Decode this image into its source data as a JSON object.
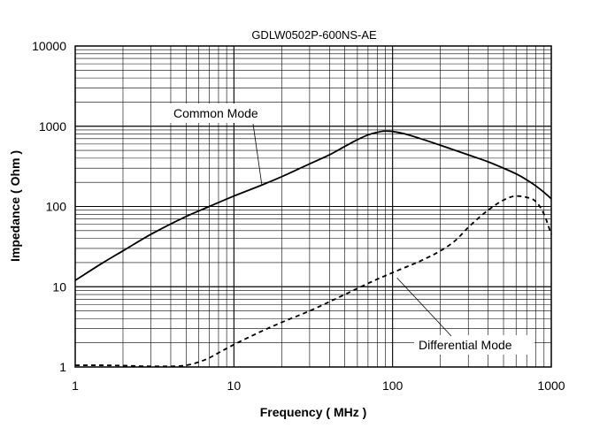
{
  "chart_data": {
    "type": "line",
    "title": "GDLW0502P-600NS-AE",
    "xlabel": "Frequency ( MHz )",
    "ylabel": "Impedance ( Ohm )",
    "xscale": "log",
    "yscale": "log",
    "xlim": [
      1,
      1000
    ],
    "ylim": [
      1,
      10000
    ],
    "grid": true,
    "x_ticks": [
      1,
      10,
      100,
      1000
    ],
    "x_tick_labels": [
      "1",
      "10",
      "100",
      "1000"
    ],
    "y_ticks": [
      1,
      10,
      100,
      1000,
      10000
    ],
    "y_tick_labels": [
      "1",
      "10",
      "100",
      "1000",
      "10000"
    ],
    "series": [
      {
        "name": "Common Mode",
        "style": "solid",
        "color": "#000000",
        "x": [
          1,
          1.5,
          2,
          3,
          5,
          7,
          10,
          15,
          20,
          30,
          40,
          50,
          60,
          70,
          80,
          90,
          100,
          120,
          150,
          200,
          300,
          400,
          500,
          600,
          700,
          800,
          900,
          1000
        ],
        "y": [
          12,
          20,
          28,
          45,
          75,
          100,
          135,
          185,
          235,
          340,
          440,
          560,
          680,
          780,
          840,
          870,
          860,
          800,
          700,
          580,
          440,
          360,
          300,
          255,
          215,
          180,
          150,
          125
        ]
      },
      {
        "name": "Differential Mode",
        "style": "dashed",
        "color": "#000000",
        "x": [
          1,
          1.5,
          2,
          3,
          4,
          5,
          6,
          7,
          8,
          10,
          15,
          20,
          30,
          50,
          70,
          100,
          150,
          200,
          250,
          300,
          400,
          500,
          600,
          700,
          800,
          900,
          1000
        ],
        "y": [
          1.05,
          1.05,
          1.04,
          1.02,
          1.02,
          1.05,
          1.15,
          1.3,
          1.5,
          1.9,
          2.8,
          3.6,
          5.0,
          8.0,
          11,
          15,
          21,
          28,
          38,
          55,
          90,
          120,
          135,
          130,
          115,
          80,
          45
        ]
      }
    ],
    "annotations": [
      {
        "text": "Common Mode",
        "series": "Common Mode"
      },
      {
        "text": "Differential Mode",
        "series": "Differential Mode"
      }
    ]
  }
}
